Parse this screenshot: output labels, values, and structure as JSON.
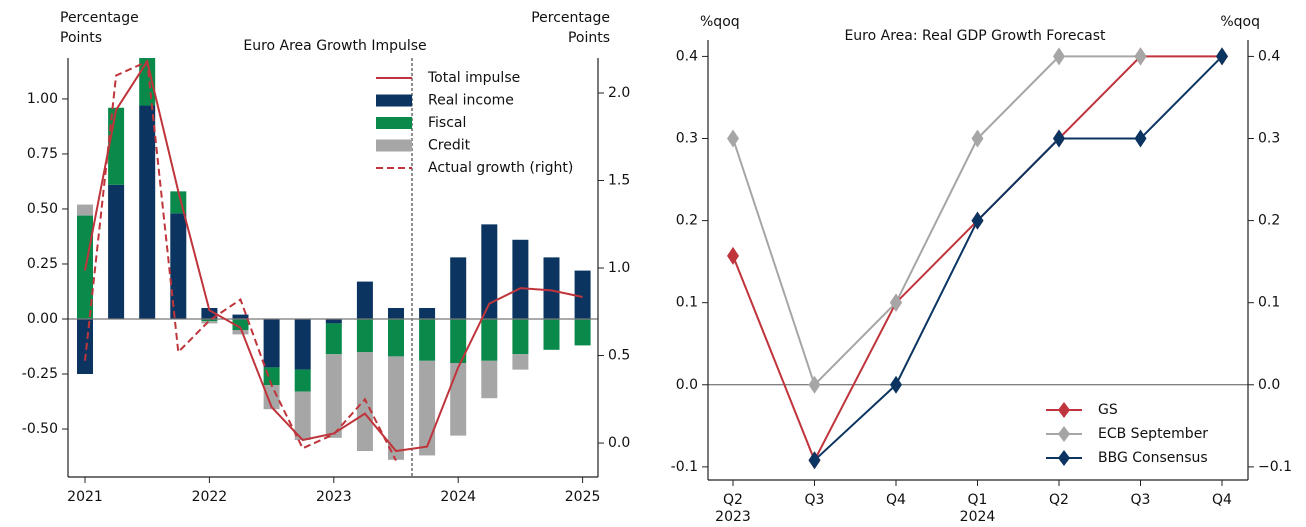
{
  "chart_data": [
    {
      "type": "bar",
      "title": "Euro Area Growth Impulse",
      "ylabel": [
        "Percentage",
        "Points"
      ],
      "y2label": [
        "Percentage",
        "Points"
      ],
      "categories": [
        "2021",
        null,
        null,
        null,
        "2022",
        null,
        null,
        null,
        "2023",
        null,
        null,
        null,
        "2024",
        null,
        null,
        null,
        "2025"
      ],
      "ylim": [
        -0.718,
        1.186
      ],
      "yticks": [
        {
          "value": -0.5,
          "label": "-0.50"
        },
        {
          "value": -0.25,
          "label": "-0.25"
        },
        {
          "value": 0,
          "label": "0.00"
        },
        {
          "value": 0.25,
          "label": "0.25"
        },
        {
          "value": 0.5,
          "label": "0.50"
        },
        {
          "value": 0.75,
          "label": "0.75"
        },
        {
          "value": 1,
          "label": "1.00"
        }
      ],
      "y2lim": [
        -0.194,
        2.2
      ],
      "y2ticks": [
        {
          "value": 0,
          "label": "0.0"
        },
        0.5,
        {
          "value": 1,
          "label": "1.0"
        },
        1.5,
        {
          "value": 2,
          "label": "2.0"
        }
      ],
      "zero_line": true,
      "series": [
        {
          "name": "Total impulse",
          "kind": "line",
          "color": "#c0343c",
          "values": [
            0.22,
            0.95,
            1.17,
            0.58,
            0.04,
            -0.04,
            -0.4,
            -0.55,
            -0.52,
            -0.43,
            -0.6,
            -0.58,
            -0.22,
            0.07,
            0.14,
            0.13,
            0.1
          ]
        },
        {
          "name": "Real income",
          "kind": "bar",
          "color": "#0b3560",
          "values": [
            -0.25,
            0.61,
            0.97,
            0.48,
            0.05,
            0.02,
            -0.22,
            -0.23,
            -0.02,
            0.17,
            0.05,
            0.05,
            0.28,
            0.43,
            0.36,
            0.28,
            0.22
          ]
        },
        {
          "name": "Fiscal",
          "kind": "bar",
          "color": "#0a8a4a",
          "values": [
            0.47,
            0.35,
            0.22,
            0.1,
            -0.01,
            -0.05,
            -0.08,
            -0.1,
            -0.14,
            -0.15,
            -0.17,
            -0.19,
            -0.2,
            -0.19,
            -0.16,
            -0.14,
            -0.12
          ]
        },
        {
          "name": "Credit",
          "kind": "bar",
          "color": "#a6a6a6",
          "values": [
            0.05,
            0,
            0,
            0,
            -0.01,
            -0.02,
            -0.11,
            -0.22,
            -0.38,
            -0.45,
            -0.47,
            -0.43,
            -0.33,
            -0.17,
            -0.07,
            0,
            0
          ]
        },
        {
          "name": "Actual growth (right)",
          "kind": "line",
          "dashed": true,
          "axis": "y2",
          "color": "#c0343c",
          "values": [
            0.47,
            2.1,
            2.18,
            0.52,
            0.7,
            0.82,
            0.33,
            -0.03,
            0.05,
            0.25,
            -0.1,
            null,
            null,
            null,
            null,
            null,
            null
          ]
        }
      ]
    },
    {
      "type": "line",
      "title": "Euro Area: Real GDP Growth Forecast",
      "ylabel": [
        "%qoq"
      ],
      "y2label": [
        "%qoq"
      ],
      "categories": [
        "Q2",
        "Q3",
        "Q4",
        "Q1",
        "Q2",
        "Q3",
        "Q4"
      ],
      "x_sublabels": [
        "2023",
        null,
        null,
        "2024",
        null,
        null,
        null
      ],
      "ylim": [
        -0.116,
        0.42
      ],
      "yticks": [
        {
          "value": -0.1,
          "label": "-0.1"
        },
        {
          "value": 0,
          "label": "0.0"
        },
        0.1,
        0.2,
        0.3,
        0.4
      ],
      "y2lim": [
        -0.116,
        0.42
      ],
      "y2ticks": [
        {
          "value": -0.1,
          "label": "−0.1"
        },
        {
          "value": 0,
          "label": "0.0"
        },
        0.1,
        0.2,
        0.3,
        0.4
      ],
      "zero_line": true,
      "marker": "diamond",
      "series": [
        {
          "name": "GS",
          "color": "#c0343c",
          "values": [
            0.157,
            -0.092,
            0.1,
            0.2,
            0.3,
            0.4,
            0.4
          ]
        },
        {
          "name": "ECB September",
          "color": "#a6a6a6",
          "values": [
            0.3,
            0,
            0.1,
            0.3,
            0.4,
            0.4,
            null
          ]
        },
        {
          "name": "BBG Consensus",
          "color": "#0b3560",
          "values": [
            null,
            -0.092,
            0,
            0.2,
            0.3,
            0.3,
            0.4
          ]
        }
      ]
    }
  ]
}
